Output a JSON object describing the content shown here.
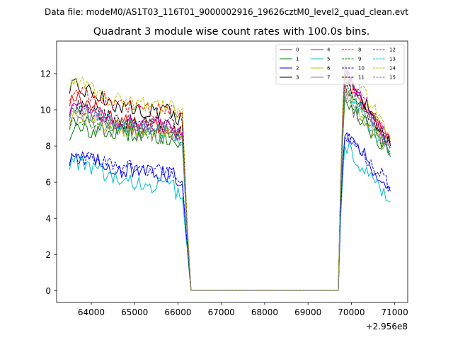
{
  "chart_data": {
    "type": "line",
    "suptitle": "Data file: modeM0/AS1T03_116T01_9000002916_19626cztM0_level2_quad_clean.evt",
    "title": "Quadrant 3 module wise count rates with 100.0s bins.",
    "xlabel": "",
    "ylabel": "",
    "x_offset_label": "+2.956e8",
    "xlim": [
      63200,
      71300
    ],
    "ylim": [
      -0.65,
      13.8
    ],
    "xticks": [
      64000,
      65000,
      66000,
      67000,
      68000,
      69000,
      70000,
      71000
    ],
    "xtick_labels": [
      "64000",
      "65000",
      "66000",
      "67000",
      "68000",
      "69000",
      "70000",
      "71000"
    ],
    "yticks": [
      0,
      2,
      4,
      6,
      8,
      10,
      12
    ],
    "ytick_labels": [
      "0",
      "2",
      "4",
      "6",
      "8",
      "10",
      "12"
    ],
    "legend_position": "top-right",
    "series": [
      {
        "name": "0",
        "color": "#ff0000",
        "dash": "solid",
        "level": 9.35,
        "first": 10.6,
        "peak2": 11.4,
        "end": 8.2
      },
      {
        "name": "1",
        "color": "#008000",
        "dash": "solid",
        "level": 8.75,
        "first": 8.7,
        "peak2": 10.7,
        "end": 7.4
      },
      {
        "name": "2",
        "color": "#0000ff",
        "dash": "solid",
        "level": 6.7,
        "first": 7.4,
        "peak2": 8.9,
        "end": 5.5
      },
      {
        "name": "3",
        "color": "#000000",
        "dash": "solid",
        "level": 10.15,
        "first": 11.3,
        "peak2": 12.2,
        "end": 8.1
      },
      {
        "name": "4",
        "color": "#bf00bf",
        "dash": "solid",
        "level": 9.3,
        "first": 10.2,
        "peak2": 12.0,
        "end": 7.9
      },
      {
        "name": "5",
        "color": "#00bfbf",
        "dash": "solid",
        "level": 6.05,
        "first": 7.1,
        "peak2": 8.1,
        "end": 4.9
      },
      {
        "name": "6",
        "color": "#bfbf00",
        "dash": "solid",
        "level": 9.0,
        "first": 9.6,
        "peak2": 10.9,
        "end": 7.7
      },
      {
        "name": "7",
        "color": "#808080",
        "dash": "solid",
        "level": 8.8,
        "first": 9.4,
        "peak2": 10.5,
        "end": 7.6
      },
      {
        "name": "8",
        "color": "#ff0000",
        "dash": "dashed",
        "level": 10.2,
        "first": 10.9,
        "peak2": 11.8,
        "end": 8.6
      },
      {
        "name": "9",
        "color": "#008000",
        "dash": "dashed",
        "level": 9.05,
        "first": 9.3,
        "peak2": 11.0,
        "end": 7.8
      },
      {
        "name": "10",
        "color": "#0000ff",
        "dash": "dashed",
        "level": 6.85,
        "first": 7.3,
        "peak2": 8.8,
        "end": 5.8
      },
      {
        "name": "11",
        "color": "#000000",
        "dash": "dashed",
        "level": 9.4,
        "first": 10.1,
        "peak2": 11.7,
        "end": 8.0
      },
      {
        "name": "12",
        "color": "#bf00bf",
        "dash": "dashed",
        "level": 9.3,
        "first": 10.0,
        "peak2": 12.2,
        "end": 8.2
      },
      {
        "name": "13",
        "color": "#00bfbf",
        "dash": "dashed",
        "level": 9.1,
        "first": 9.9,
        "peak2": 11.4,
        "end": 7.4
      },
      {
        "name": "14",
        "color": "#bfbf00",
        "dash": "dashed",
        "level": 10.4,
        "first": 11.5,
        "peak2": 12.9,
        "end": 8.4
      },
      {
        "name": "15",
        "color": "#808080",
        "dash": "dashed",
        "level": 9.15,
        "first": 9.8,
        "peak2": 11.2,
        "end": 7.8
      }
    ]
  }
}
